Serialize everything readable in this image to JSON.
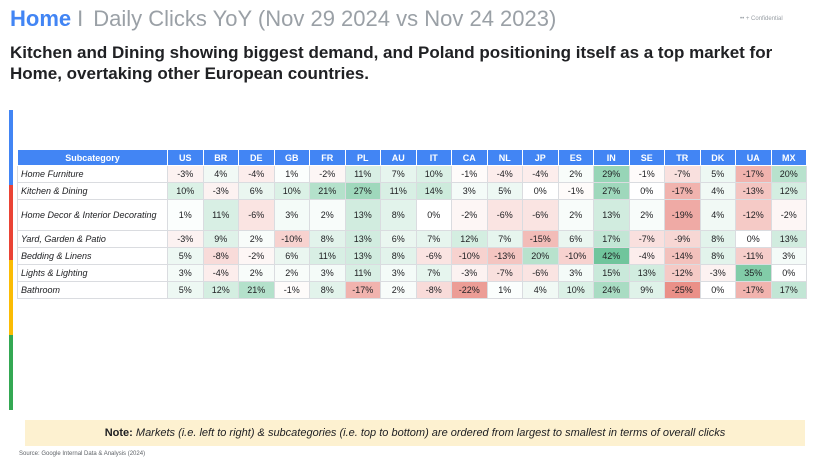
{
  "header": {
    "section": "Home",
    "separator": "I",
    "title": "Daily Clicks YoY (Nov 29 2024 vs Nov 24 2023)",
    "confidential": "•• + Confidential"
  },
  "headline": "Kitchen and Dining showing biggest demand, and Poland positioning itself as a top market for Home, overtaking other European countries.",
  "table": {
    "first_col_header": "Subcategory",
    "markets": [
      "US",
      "BR",
      "DE",
      "GB",
      "FR",
      "PL",
      "AU",
      "IT",
      "CA",
      "NL",
      "JP",
      "ES",
      "IN",
      "SE",
      "TR",
      "DK",
      "UA",
      "MX"
    ],
    "rows": [
      {
        "label": "Home Furniture",
        "values": [
          -3,
          4,
          -4,
          1,
          -2,
          11,
          7,
          10,
          -1,
          -4,
          -4,
          2,
          29,
          -1,
          -7,
          5,
          -17,
          20
        ]
      },
      {
        "label": "Kitchen & Dining",
        "values": [
          10,
          -3,
          6,
          10,
          21,
          27,
          11,
          14,
          3,
          5,
          0,
          -1,
          27,
          0,
          -17,
          4,
          -13,
          12
        ]
      },
      {
        "label": "Home Decor & Interior Decorating",
        "values": [
          1,
          11,
          -6,
          3,
          2,
          13,
          8,
          0,
          -2,
          -6,
          -6,
          2,
          13,
          2,
          -19,
          4,
          -12,
          -2
        ]
      },
      {
        "label": "Yard, Garden & Patio",
        "values": [
          -3,
          9,
          2,
          -10,
          8,
          13,
          6,
          7,
          12,
          7,
          -15,
          6,
          17,
          -7,
          -9,
          8,
          0,
          13
        ]
      },
      {
        "label": "Bedding & Linens",
        "values": [
          5,
          -8,
          -2,
          6,
          11,
          13,
          8,
          -6,
          -10,
          -13,
          20,
          -10,
          42,
          -4,
          -14,
          8,
          -11,
          3
        ]
      },
      {
        "label": "Lights & Lighting",
        "values": [
          3,
          -4,
          2,
          2,
          3,
          11,
          3,
          7,
          -3,
          -7,
          -6,
          3,
          15,
          13,
          -12,
          -3,
          35,
          0
        ]
      },
      {
        "label": "Bathroom",
        "values": [
          5,
          12,
          21,
          -1,
          8,
          -17,
          2,
          -8,
          -22,
          1,
          4,
          10,
          24,
          9,
          -25,
          0,
          -17,
          17
        ]
      }
    ],
    "colors": {
      "positive": "#57bb8a",
      "negative": "#e67c73",
      "neutral": "#ffffff"
    }
  },
  "note": {
    "label": "Note:",
    "text": "Markets (i.e. left to right) & subcategories (i.e. top to bottom) are ordered from largest to smallest in terms of overall clicks"
  },
  "source": "Source: Google Internal Data & Analysis (2024)",
  "stripe_colors": [
    "#4285f4",
    "#ea4335",
    "#fbbc04",
    "#34a853"
  ]
}
